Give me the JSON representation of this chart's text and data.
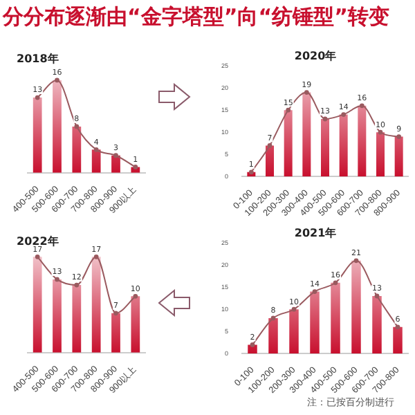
{
  "chart_data": [
    {
      "type": "other",
      "title": "分分布逐渐由“金字塔型”向“纺锤型”转变",
      "annotations": [
        "注：已按百分制进行"
      ]
    },
    {
      "type": "bar",
      "title": "2018年",
      "categories": [
        "400-500",
        "500-600",
        "600-700",
        "700-800",
        "800-900",
        "900以上"
      ],
      "series": [
        {
          "type": "bar",
          "color": "#c8102e",
          "values": [
            13,
            16,
            8,
            4,
            3,
            1
          ]
        },
        {
          "type": "line",
          "color": "#9a5a5f",
          "values": [
            13,
            16,
            8,
            4,
            3,
            1
          ],
          "value_labels": [
            "13",
            "16",
            "8",
            "4",
            "3",
            "1"
          ]
        }
      ],
      "tick_labels": "x",
      "marker": "circle",
      "grid": false,
      "legend": false
    },
    {
      "type": "bar",
      "title": "2020年",
      "categories": [
        "0-100",
        "100-200",
        "200-300",
        "300-400",
        "400-500",
        "500-600",
        "600-700",
        "700-800",
        "800-900"
      ],
      "series": [
        {
          "type": "bar",
          "color": "#c8102e",
          "values": [
            1,
            7,
            15,
            19,
            13,
            14,
            16,
            10,
            9
          ]
        },
        {
          "type": "line",
          "color": "#9a5a5f",
          "values": [
            1,
            7,
            15,
            19,
            13,
            14,
            16,
            10,
            9
          ],
          "value_labels": [
            "1",
            "7",
            "15",
            "19",
            "13",
            "14",
            "16",
            "10",
            "9"
          ]
        }
      ],
      "ylim": [
        0,
        25
      ],
      "yticks": [
        0,
        5,
        10,
        15,
        20,
        25
      ],
      "marker": "circle",
      "grid": false,
      "legend": false
    },
    {
      "type": "bar",
      "title": "2022年",
      "categories": [
        "400-500",
        "500-600",
        "600-700",
        "700-800",
        "800-900",
        "900以上"
      ],
      "series": [
        {
          "type": "bar",
          "color": "#c8102e",
          "values": [
            17,
            13,
            12,
            17,
            7,
            10
          ]
        },
        {
          "type": "line",
          "color": "#9a5a5f",
          "values": [
            17,
            13,
            12,
            17,
            7,
            10
          ],
          "value_labels": [
            "17",
            "13",
            "12",
            "17",
            "7",
            "10"
          ]
        }
      ],
      "tick_labels": "x",
      "marker": "circle",
      "grid": false,
      "legend": false
    },
    {
      "type": "bar",
      "title": "2021年",
      "categories": [
        "0-100",
        "100-200",
        "200-300",
        "300-400",
        "400-500",
        "500-600",
        "600-700",
        "700-800"
      ],
      "series": [
        {
          "type": "bar",
          "color": "#c8102e",
          "values": [
            2,
            8,
            10,
            14,
            16,
            21,
            13,
            6
          ]
        },
        {
          "type": "line",
          "color": "#9a5a5f",
          "values": [
            2,
            8,
            10,
            14,
            16,
            21,
            13,
            6
          ],
          "value_labels": [
            "2",
            "8",
            "10",
            "14",
            "16",
            "21",
            "13",
            "6"
          ]
        }
      ],
      "ylim": [
        0,
        25
      ],
      "yticks": [
        0,
        5,
        10,
        15,
        20,
        25
      ],
      "marker": "circle",
      "grid": false,
      "legend": false
    }
  ]
}
